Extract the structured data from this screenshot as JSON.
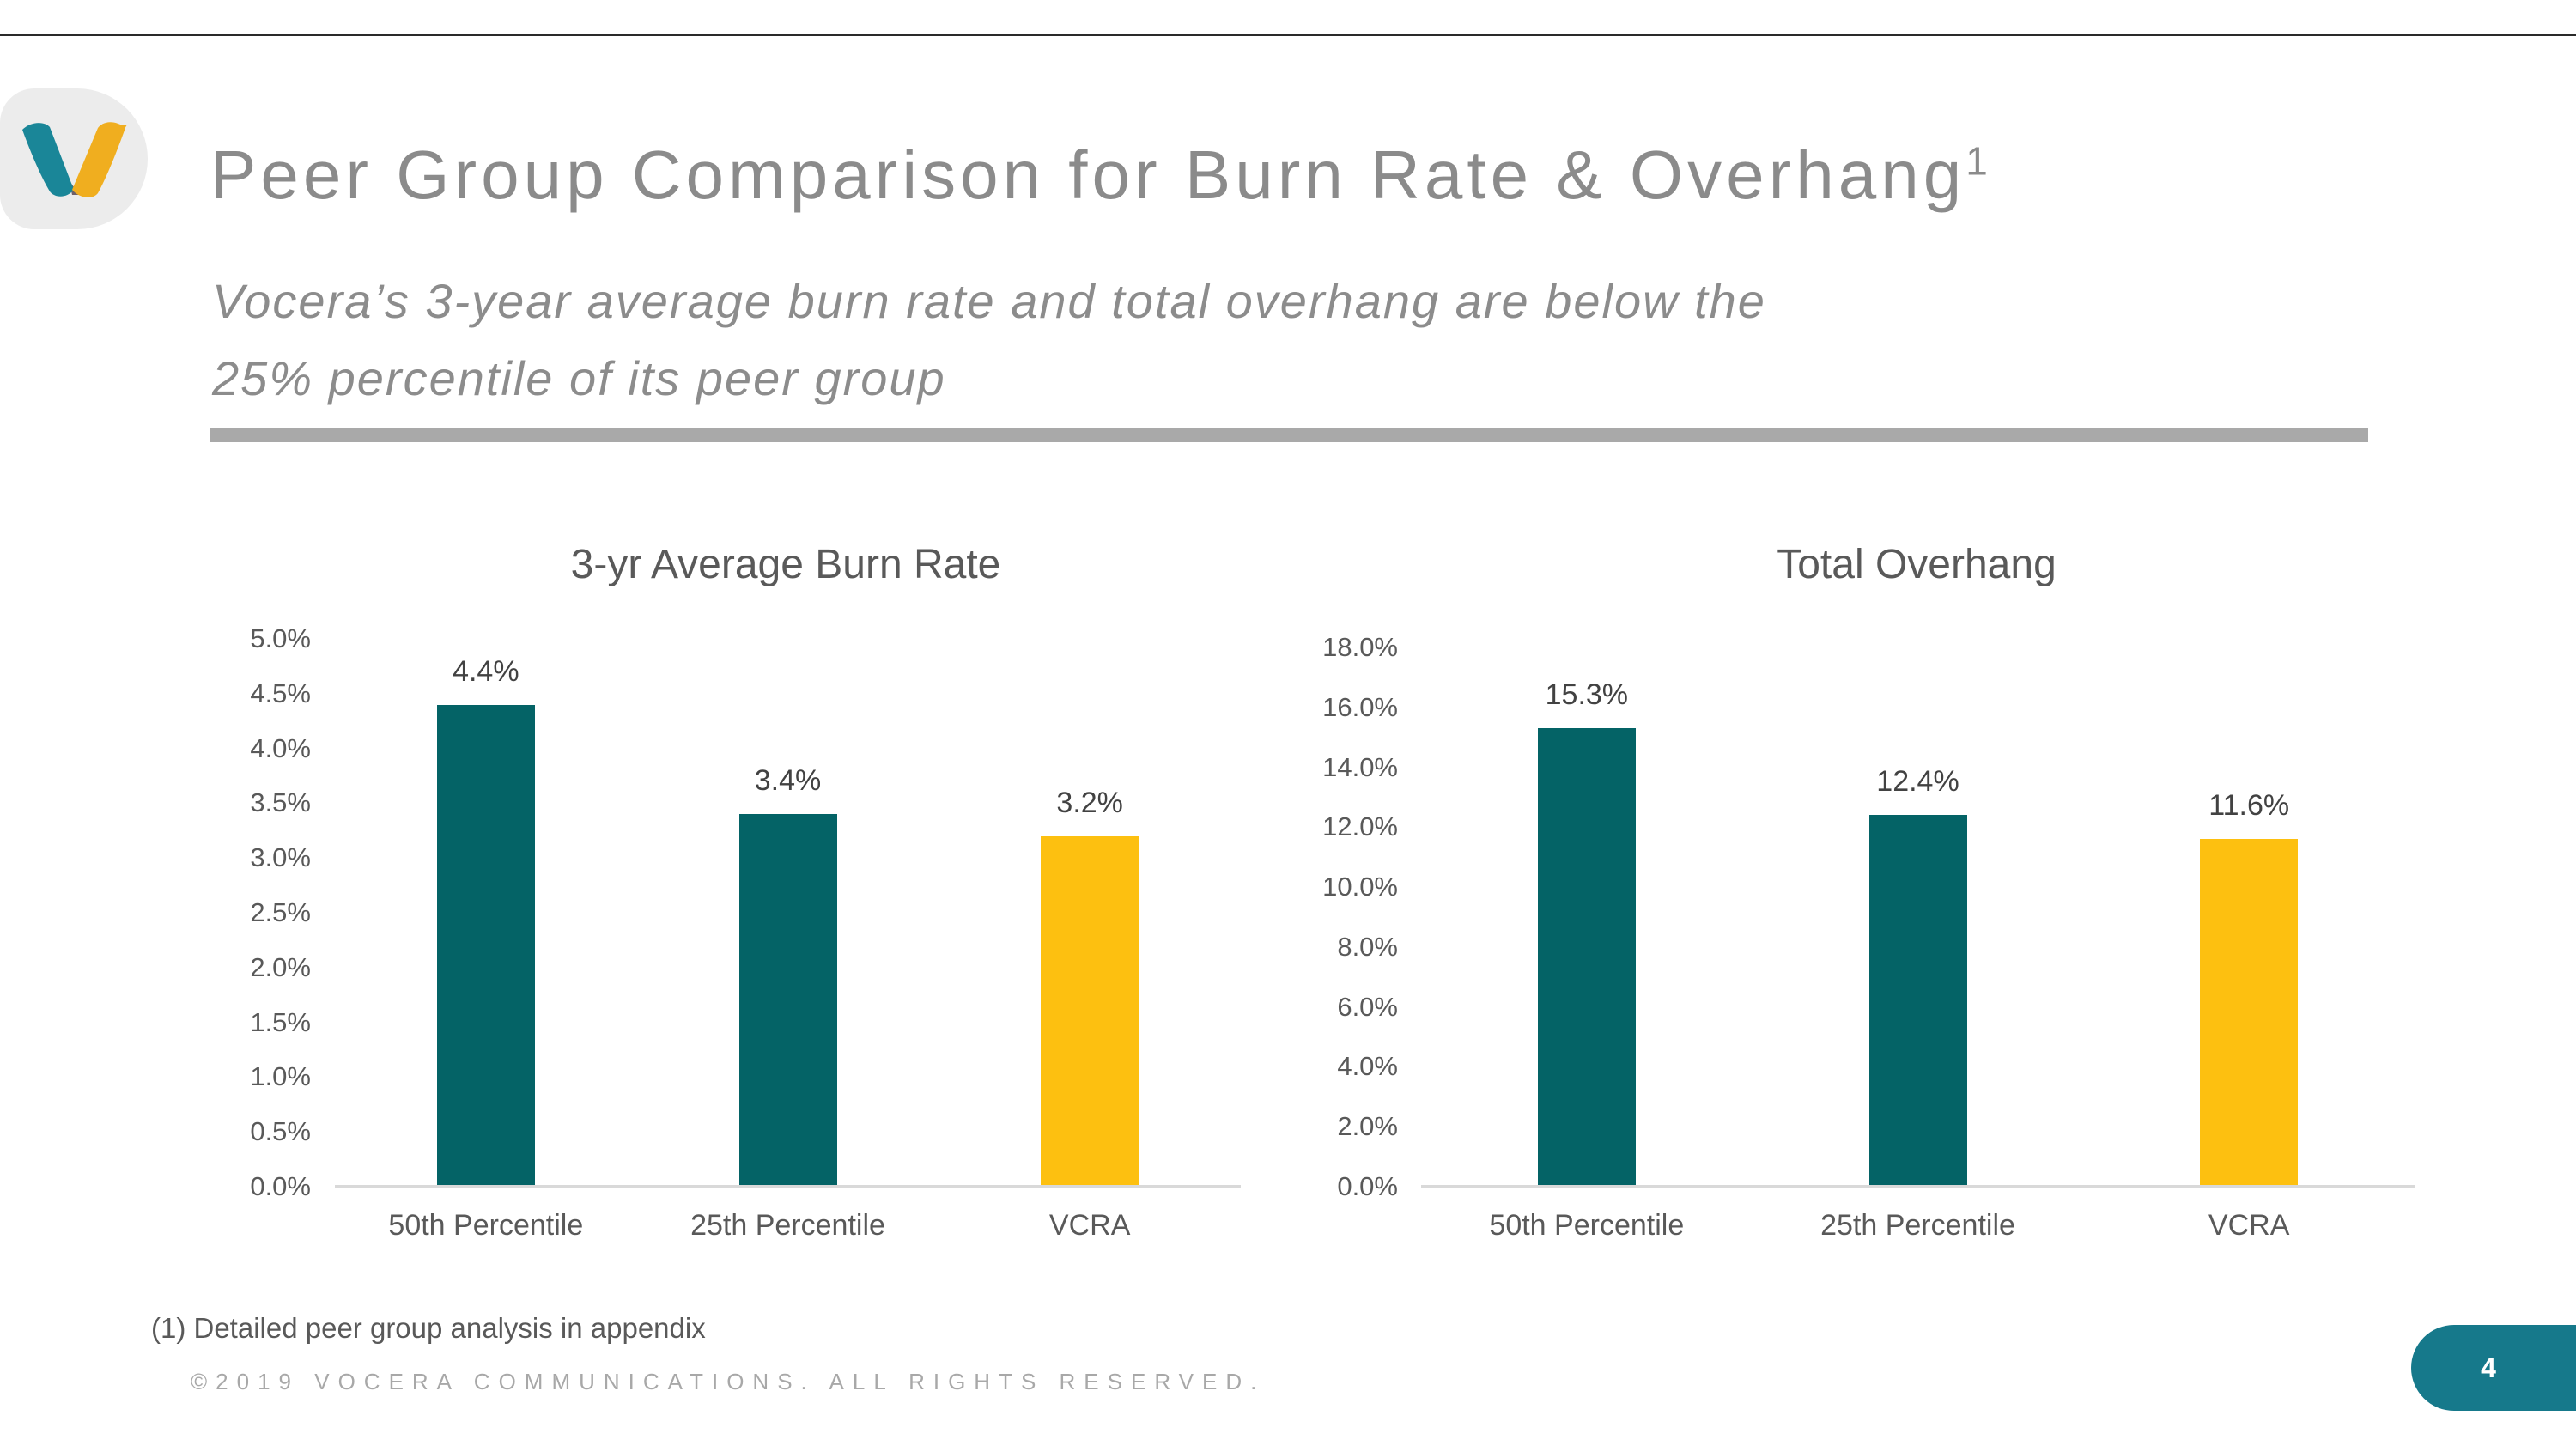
{
  "slide": {
    "title": "Peer Group Comparison for Burn Rate & Overhang",
    "title_superscript": "1",
    "subtitle_lines": [
      "Vocera’s 3-year average burn rate and total overhang are below the",
      "25% percentile of its peer group"
    ],
    "footnote": "(1) Detailed peer group analysis in appendix",
    "copyright": "©2019 VOCERA COMMUNICATIONS. ALL RIGHTS RESERVED.",
    "page_number": "4",
    "logo_name": "vocera-v-logo"
  },
  "colors": {
    "bar_teal": "#046366",
    "bar_gold": "#fdc010",
    "badge_teal": "#16798b",
    "logo_teal": "#1a8698",
    "logo_gold": "#f0ae1f",
    "logo_overlap": "#6f6068",
    "title_gray": "#8b8b8b",
    "axis_text_gray": "#595959",
    "divider_gray": "#a9a9a9",
    "baseline_gray": "#d9d9d9"
  },
  "chart_data": [
    {
      "type": "bar",
      "title": "3-yr Average Burn Rate",
      "categories": [
        "50th Percentile",
        "25th Percentile",
        "VCRA"
      ],
      "values": [
        4.4,
        3.4,
        3.2
      ],
      "value_labels": [
        "4.4%",
        "3.4%",
        "3.2%"
      ],
      "bar_colors": [
        "teal",
        "teal",
        "gold"
      ],
      "xlabel": "",
      "ylabel": "",
      "ylim": [
        0,
        5
      ],
      "ytick_step": 0.5,
      "ytick_labels": [
        "0.0%",
        "0.5%",
        "1.0%",
        "1.5%",
        "2.0%",
        "2.5%",
        "3.0%",
        "3.5%",
        "4.0%",
        "4.5%",
        "5.0%"
      ],
      "grid": false,
      "legend": false
    },
    {
      "type": "bar",
      "title": "Total Overhang",
      "categories": [
        "50th Percentile",
        "25th Percentile",
        "VCRA"
      ],
      "values": [
        15.3,
        12.4,
        11.6
      ],
      "value_labels": [
        "15.3%",
        "12.4%",
        "11.6%"
      ],
      "bar_colors": [
        "teal",
        "teal",
        "gold"
      ],
      "xlabel": "",
      "ylabel": "",
      "ylim": [
        0,
        18
      ],
      "ytick_step": 2,
      "ytick_labels": [
        "0.0%",
        "2.0%",
        "4.0%",
        "6.0%",
        "8.0%",
        "10.0%",
        "12.0%",
        "14.0%",
        "16.0%",
        "18.0%"
      ],
      "grid": false,
      "legend": false
    }
  ]
}
